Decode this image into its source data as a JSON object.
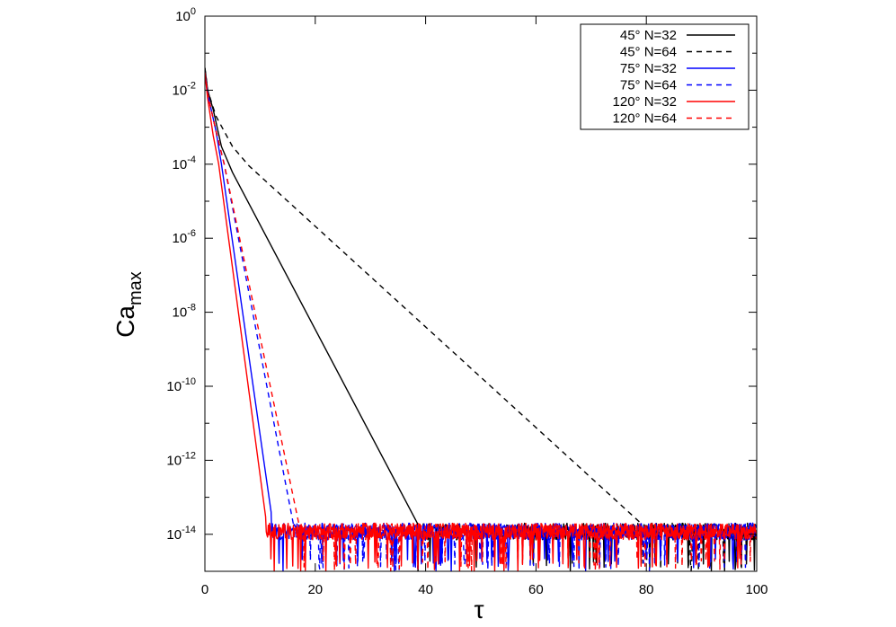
{
  "chart_data": {
    "type": "line",
    "title": "",
    "xlabel": "τ",
    "ylabel": {
      "base": "Ca",
      "subscript": "max"
    },
    "xlim": [
      0,
      100
    ],
    "ylim": [
      1e-15,
      1
    ],
    "yscale": "log",
    "grid": false,
    "legend_position": "top-right",
    "x_ticks": [
      "0",
      "20",
      "40",
      "60",
      "80",
      "100"
    ],
    "x_tick_values": [
      0,
      20,
      40,
      60,
      80,
      100
    ],
    "y_ticks": [
      {
        "value": 1,
        "base": "10",
        "exp": "0"
      },
      {
        "value": 0.01,
        "base": "10",
        "exp": "-2"
      },
      {
        "value": 0.0001,
        "base": "10",
        "exp": "-4"
      },
      {
        "value": 1e-06,
        "base": "10",
        "exp": "-6"
      },
      {
        "value": 1e-08,
        "base": "10",
        "exp": "-8"
      },
      {
        "value": 1e-10,
        "base": "10",
        "exp": "-10"
      },
      {
        "value": 1e-12,
        "base": "10",
        "exp": "-12"
      },
      {
        "value": 1e-14,
        "base": "10",
        "exp": "-14"
      }
    ],
    "noise_floor": {
      "x_start_note": "each series flattens into a noisy floor after reaching ~1e-14",
      "low": 1e-15,
      "high": 2e-14
    },
    "series": [
      {
        "name": "45° N=32",
        "color": "#000000",
        "dash": "solid",
        "points": [
          [
            0,
            0.04
          ],
          [
            0.5,
            0.01
          ],
          [
            1.5,
            0.003
          ],
          [
            3,
            0.0003
          ],
          [
            5,
            6e-05
          ],
          [
            38.5,
            2e-14
          ]
        ],
        "noise_from": 38.5
      },
      {
        "name": "45° N=64",
        "color": "#000000",
        "dash": "dashed",
        "points": [
          [
            0,
            0.04
          ],
          [
            0.5,
            0.01
          ],
          [
            2,
            0.002
          ],
          [
            5,
            0.0003
          ],
          [
            8,
            9e-05
          ],
          [
            79,
            2e-14
          ]
        ],
        "noise_from": 79
      },
      {
        "name": "75° N=32",
        "color": "#0000ff",
        "dash": "solid",
        "points": [
          [
            0,
            0.03
          ],
          [
            0.5,
            0.008
          ],
          [
            2,
            0.0008
          ],
          [
            3,
            0.0001
          ],
          [
            12,
            4e-14
          ]
        ],
        "noise_from": 12
      },
      {
        "name": "75° N=64",
        "color": "#0000ff",
        "dash": "dashed",
        "points": [
          [
            0,
            0.03
          ],
          [
            0.5,
            0.008
          ],
          [
            2,
            0.0008
          ],
          [
            3.5,
            0.0001
          ],
          [
            16,
            2e-14
          ]
        ],
        "noise_from": 16
      },
      {
        "name": "120° N=32",
        "color": "#ff0000",
        "dash": "solid",
        "points": [
          [
            0,
            0.03
          ],
          [
            0.5,
            0.006
          ],
          [
            1.5,
            0.0006
          ],
          [
            2.5,
            0.0001
          ],
          [
            11,
            3e-14
          ]
        ],
        "noise_from": 11
      },
      {
        "name": "120° N=64",
        "color": "#ff0000",
        "dash": "dashed",
        "points": [
          [
            0,
            0.03
          ],
          [
            0.5,
            0.008
          ],
          [
            2,
            0.0008
          ],
          [
            3.5,
            0.0001
          ],
          [
            17,
            2e-14
          ]
        ],
        "noise_from": 17
      }
    ]
  }
}
